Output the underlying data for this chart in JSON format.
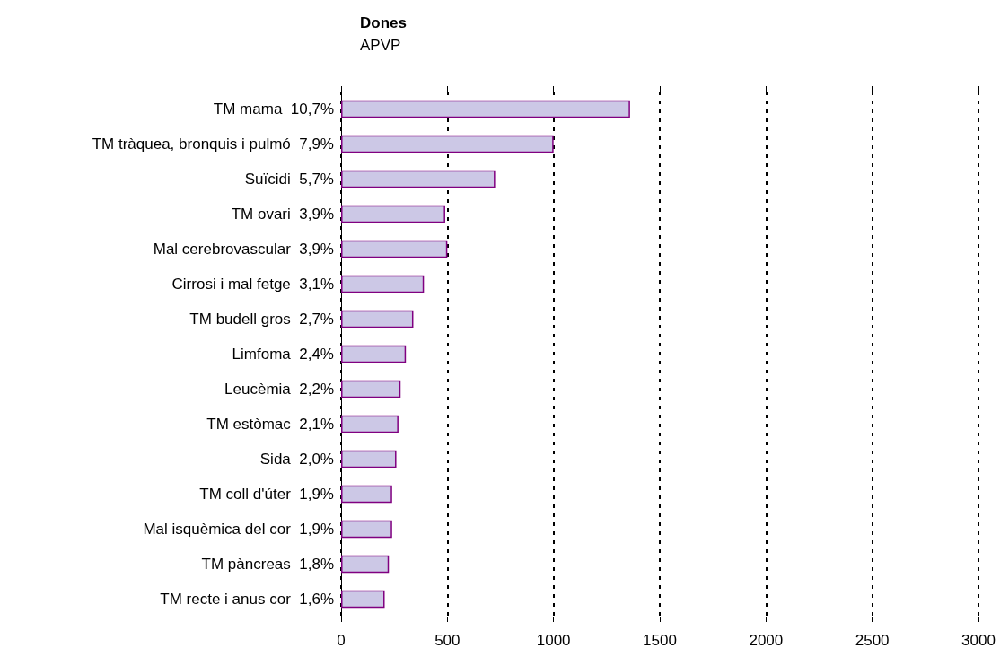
{
  "chart_data": {
    "type": "bar",
    "orientation": "horizontal",
    "title": "Dones",
    "subtitle": "APVP",
    "categories": [
      "TM mama  10,7%",
      "TM tràquea, bronquis i pulmó  7,9%",
      "Suïcidi  5,7%",
      "TM ovari  3,9%",
      "Mal cerebrovascular  3,9%",
      "Cirrosi i mal fetge  3,1%",
      "TM budell gros  2,7%",
      "Limfoma  2,4%",
      "Leucèmia  2,2%",
      "TM estòmac  2,1%",
      "Sida  2,0%",
      "TM coll d'úter  1,9%",
      "Mal isquèmica del cor  1,9%",
      "TM pàncreas  1,8%",
      "TM recte i anus cor  1,6%"
    ],
    "values": [
      1360,
      1000,
      725,
      490,
      500,
      390,
      340,
      305,
      280,
      270,
      260,
      240,
      240,
      225,
      205
    ],
    "color": "#ccc8e6",
    "xlim": [
      0,
      3000
    ],
    "xticks": [
      0,
      500,
      1000,
      1500,
      2000,
      2500,
      3000
    ],
    "grid": "x"
  }
}
